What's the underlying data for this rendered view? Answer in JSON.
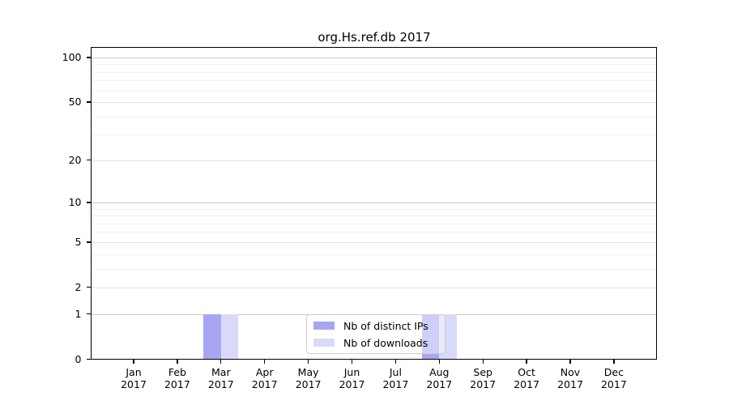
{
  "title": "org.Hs.ref.db 2017",
  "legend": {
    "items": [
      {
        "label": "Nb of distinct IPs",
        "color": "#a6a6f2"
      },
      {
        "label": "Nb of downloads",
        "color": "#d9d9f9"
      }
    ]
  },
  "chart_data": {
    "type": "bar",
    "title": "org.Hs.ref.db 2017",
    "categories": [
      "Jan 2017",
      "Feb 2017",
      "Mar 2017",
      "Apr 2017",
      "May 2017",
      "Jun 2017",
      "Jul 2017",
      "Aug 2017",
      "Sep 2017",
      "Oct 2017",
      "Nov 2017",
      "Dec 2017"
    ],
    "series": [
      {
        "name": "Nb of distinct IPs",
        "color": "#a6a6f2",
        "values": [
          0,
          0,
          1,
          0,
          0,
          0,
          0,
          1,
          0,
          0,
          0,
          0
        ]
      },
      {
        "name": "Nb of downloads",
        "color": "#d9d9f9",
        "values": [
          0,
          0,
          1,
          0,
          0,
          0,
          0,
          1,
          0,
          0,
          0,
          0
        ]
      }
    ],
    "xlabel": "",
    "ylabel": "",
    "yscale": "log1p",
    "ylim": [
      0,
      116
    ],
    "yticks": [
      0,
      1,
      2,
      5,
      10,
      20,
      50,
      100
    ],
    "minor_yticks": [
      3,
      4,
      6,
      7,
      8,
      9,
      30,
      40,
      60,
      70,
      80,
      90
    ],
    "grid": true,
    "legend_position": "bottom-center"
  }
}
